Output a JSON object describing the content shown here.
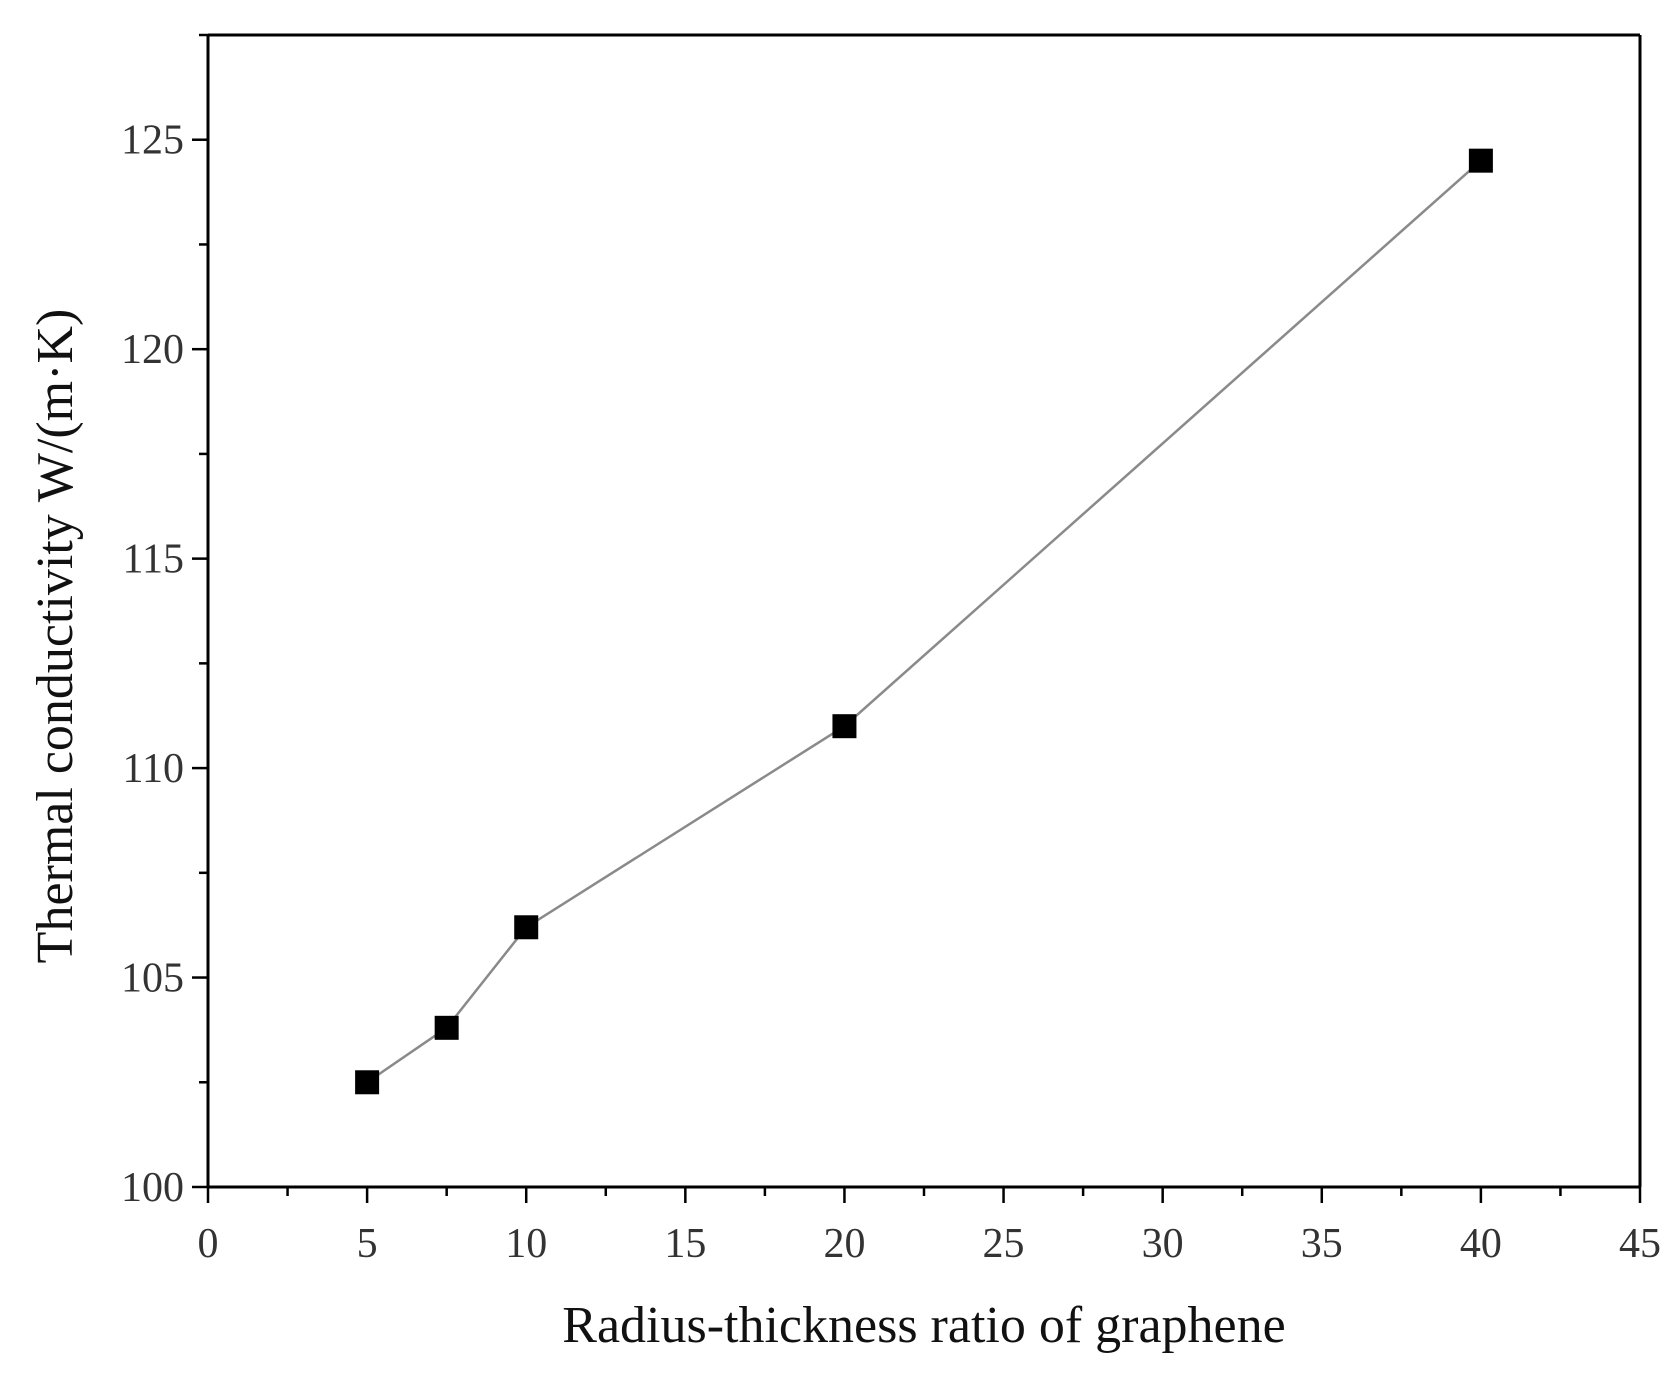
{
  "chart_data": {
    "type": "line",
    "title": "",
    "xlabel": "Radius-thickness ratio of graphene",
    "ylabel": "Thermal conductivity  W/(m·K)",
    "xlim": [
      0,
      45
    ],
    "ylim": [
      100,
      127.5
    ],
    "x_ticks": [
      0,
      5,
      10,
      15,
      20,
      25,
      30,
      35,
      40,
      45
    ],
    "y_ticks": [
      100,
      105,
      110,
      115,
      120,
      125
    ],
    "grid": false,
    "legend": "none",
    "series": [
      {
        "marker": "square",
        "color": "#000000",
        "line_color": "#8a8a8a",
        "x": [
          5,
          7.5,
          10,
          20,
          40
        ],
        "y": [
          102.5,
          103.8,
          106.2,
          111.0,
          124.5
        ]
      }
    ]
  }
}
